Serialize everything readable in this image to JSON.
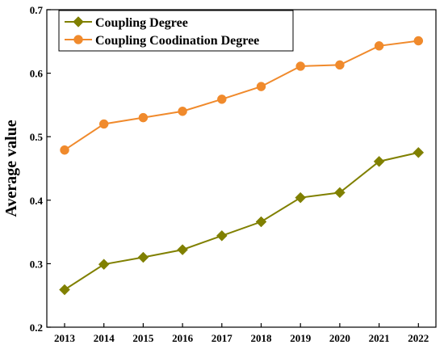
{
  "chart_data": {
    "type": "line",
    "xlabel": "",
    "ylabel": "Average value",
    "categories": [
      "2013",
      "2014",
      "2015",
      "2016",
      "2017",
      "2018",
      "2019",
      "2020",
      "2021",
      "2022"
    ],
    "ylim": [
      0.2,
      0.7
    ],
    "yticks": [
      "0.2",
      "0.3",
      "0.4",
      "0.5",
      "0.6",
      "0.7"
    ],
    "grid": false,
    "legend_position": "top-left",
    "series": [
      {
        "name": "Coupling Degree",
        "color": "#808000",
        "marker": "diamond",
        "values": [
          0.259,
          0.299,
          0.31,
          0.322,
          0.344,
          0.366,
          0.404,
          0.412,
          0.461,
          0.475
        ]
      },
      {
        "name": "Coupling Coodination Degree",
        "color": "#f08a2c",
        "marker": "circle",
        "values": [
          0.479,
          0.52,
          0.53,
          0.54,
          0.559,
          0.579,
          0.611,
          0.613,
          0.643,
          0.651
        ]
      }
    ]
  }
}
